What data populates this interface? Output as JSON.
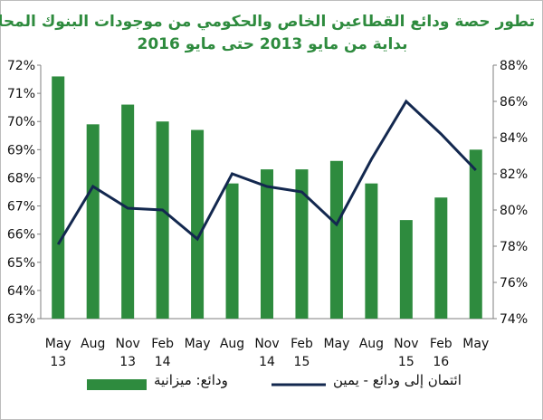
{
  "chart_data": {
    "type": "bar",
    "title_line1": "تطور حصة ودائع القطاعين الخاص والحكومي من موجودات البنوك المحلية",
    "title_line2": "بداية من مايو 2013 حتى مايو 2016",
    "categories": [
      [
        "May",
        "13"
      ],
      [
        "Aug",
        ""
      ],
      [
        "Nov",
        "13"
      ],
      [
        "Feb",
        "14"
      ],
      [
        "May",
        ""
      ],
      [
        "Aug",
        ""
      ],
      [
        "Nov",
        "14"
      ],
      [
        "Feb",
        "15"
      ],
      [
        "May",
        ""
      ],
      [
        "Aug",
        ""
      ],
      [
        "Nov",
        "15"
      ],
      [
        "Feb",
        "16"
      ],
      [
        "May",
        ""
      ]
    ],
    "series": [
      {
        "name": "ودائع: ميزانية",
        "type": "bar",
        "axis": "left",
        "color": "#2e8b3e",
        "values": [
          71.6,
          69.9,
          70.6,
          70.0,
          69.7,
          67.8,
          68.3,
          68.3,
          68.6,
          67.8,
          66.5,
          67.3,
          69.0
        ]
      },
      {
        "name": "ائتمان إلى ودائع - يمين",
        "type": "line",
        "axis": "right",
        "color": "#13284f",
        "values": [
          78.1,
          81.3,
          80.1,
          80.0,
          78.4,
          82.0,
          81.3,
          81.0,
          79.2,
          82.8,
          86.0,
          84.2,
          82.2
        ]
      }
    ],
    "left_axis": {
      "min": 63,
      "max": 72,
      "step": 1,
      "format": "%"
    },
    "right_axis": {
      "min": 74,
      "max": 88,
      "step": 2,
      "format": "%"
    },
    "grid": false,
    "legend_position": "bottom"
  }
}
